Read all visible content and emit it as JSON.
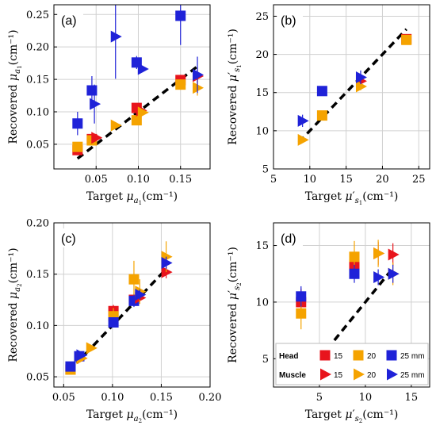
{
  "colors": {
    "grid": "#d0d0d0",
    "frame": "#000000",
    "fit_line": "#000000"
  },
  "series_styles": {
    "head_15": {
      "color": "#e8141c",
      "marker": "square"
    },
    "head_20": {
      "color": "#f5a300",
      "marker": "square"
    },
    "head_25": {
      "color": "#1f22d8",
      "marker": "square"
    },
    "muscle_15": {
      "color": "#e8141c",
      "marker": "triangle-right"
    },
    "muscle_20": {
      "color": "#f5a300",
      "marker": "triangle-right"
    },
    "muscle_25": {
      "color": "#1f22d8",
      "marker": "triangle-right"
    }
  },
  "legend": {
    "rows": [
      {
        "label": "Head",
        "entries": [
          {
            "series": "head_15",
            "text": "15"
          },
          {
            "series": "head_20",
            "text": "20"
          },
          {
            "series": "head_25",
            "text": "25 mm"
          }
        ]
      },
      {
        "label": "Muscle",
        "entries": [
          {
            "series": "muscle_15",
            "text": "15"
          },
          {
            "series": "muscle_20",
            "text": "20"
          },
          {
            "series": "muscle_25",
            "text": "25 mm"
          }
        ]
      }
    ]
  },
  "chart_data": [
    {
      "panel": "(a)",
      "type": "scatter",
      "xlabel": {
        "prefix": "Target ",
        "symbol": "μ",
        "prime": "",
        "subscript": "a",
        "subsub": "1",
        "unit": "(cm⁻¹)"
      },
      "ylabel": {
        "prefix": "Recovered ",
        "symbol": "μ",
        "prime": "",
        "subscript": "a",
        "subsub": "1",
        "unit": "(cm⁻¹)"
      },
      "xlim": [
        0.0,
        0.185
      ],
      "ylim": [
        0.012,
        0.265
      ],
      "xticks": [
        0.05,
        0.1,
        0.15
      ],
      "xticklabels": [
        "0.05",
        "0.10",
        "0.15"
      ],
      "yticks": [
        0.05,
        0.1,
        0.15,
        0.2,
        0.25
      ],
      "yticklabels": [
        "0.05",
        "0.10",
        "0.15",
        "0.20",
        "0.25"
      ],
      "fit_line": [
        [
          0.028,
          0.028
        ],
        [
          0.17,
          0.17
        ]
      ],
      "series": [
        {
          "style": "head_15",
          "points": [
            {
              "x": 0.028,
              "y": 0.041,
              "err": 0.004
            },
            {
              "x": 0.045,
              "y": 0.058,
              "err": 0.005
            },
            {
              "x": 0.098,
              "y": 0.106,
              "err": 0.006
            },
            {
              "x": 0.15,
              "y": 0.149,
              "err": 0.008
            }
          ]
        },
        {
          "style": "head_20",
          "points": [
            {
              "x": 0.028,
              "y": 0.046,
              "err": 0.005
            },
            {
              "x": 0.045,
              "y": 0.056,
              "err": 0.006
            },
            {
              "x": 0.098,
              "y": 0.087,
              "err": 0.007
            },
            {
              "x": 0.15,
              "y": 0.142,
              "err": 0.008
            }
          ]
        },
        {
          "style": "head_25",
          "points": [
            {
              "x": 0.028,
              "y": 0.082,
              "err": 0.018
            },
            {
              "x": 0.045,
              "y": 0.133,
              "err": 0.022
            },
            {
              "x": 0.098,
              "y": 0.176,
              "err": 0.01
            },
            {
              "x": 0.15,
              "y": 0.248,
              "err": 0.045
            }
          ]
        },
        {
          "style": "muscle_15",
          "points": [
            {
              "x": 0.05,
              "y": 0.06,
              "err": 0.004
            },
            {
              "x": 0.103,
              "y": 0.102,
              "err": 0.005
            },
            {
              "x": 0.17,
              "y": 0.155,
              "err": 0.01
            }
          ]
        },
        {
          "style": "muscle_20",
          "points": [
            {
              "x": 0.073,
              "y": 0.079,
              "err": 0.005
            },
            {
              "x": 0.105,
              "y": 0.099,
              "err": 0.005
            },
            {
              "x": 0.17,
              "y": 0.137,
              "err": 0.012
            }
          ]
        },
        {
          "style": "muscle_25",
          "points": [
            {
              "x": 0.048,
              "y": 0.112,
              "err": 0.03
            },
            {
              "x": 0.073,
              "y": 0.216,
              "err": 0.065
            },
            {
              "x": 0.105,
              "y": 0.166,
              "err": 0.005
            },
            {
              "x": 0.17,
              "y": 0.157,
              "err": 0.028
            }
          ]
        }
      ]
    },
    {
      "panel": "(b)",
      "type": "scatter",
      "xlabel": {
        "prefix": "Target ",
        "symbol": "μ",
        "prime": "′",
        "subscript": "s",
        "subsub": "1",
        "unit": "(cm⁻¹)"
      },
      "ylabel": {
        "prefix": "Recovered ",
        "symbol": "μ",
        "prime": "′",
        "subscript": "s",
        "subsub": "1",
        "unit": "(cm⁻¹)"
      },
      "xlim": [
        5,
        26.5
      ],
      "ylim": [
        5,
        26.5
      ],
      "xticks": [
        5,
        10,
        15,
        20,
        25
      ],
      "xticklabels": [
        "5",
        "10",
        "15",
        "20",
        "25"
      ],
      "yticks": [
        5,
        10,
        15,
        20,
        25
      ],
      "yticklabels": [
        "5",
        "10",
        "15",
        "20",
        "25"
      ],
      "fit_line": [
        [
          8.5,
          8.5
        ],
        [
          23.3,
          23.3
        ]
      ],
      "series": [
        {
          "style": "head_15",
          "points": [
            {
              "x": 23.3,
              "y": 22.0,
              "err": 0.6
            }
          ]
        },
        {
          "style": "head_20",
          "points": [
            {
              "x": 11.7,
              "y": 12.0,
              "err": 0.4
            },
            {
              "x": 23.3,
              "y": 21.9,
              "err": 0.6
            }
          ]
        },
        {
          "style": "head_25",
          "points": [
            {
              "x": 11.7,
              "y": 15.2,
              "err": 0.6
            }
          ]
        },
        {
          "style": "muscle_15",
          "points": [
            {
              "x": 17.0,
              "y": 16.5,
              "err": 0.6
            }
          ]
        },
        {
          "style": "muscle_20",
          "points": [
            {
              "x": 9.0,
              "y": 8.8,
              "err": 0.4
            },
            {
              "x": 17.0,
              "y": 15.8,
              "err": 0.5
            }
          ]
        },
        {
          "style": "muscle_25",
          "points": [
            {
              "x": 9.0,
              "y": 11.3,
              "err": 0.8
            },
            {
              "x": 17.0,
              "y": 17.0,
              "err": 0.9
            }
          ]
        }
      ]
    },
    {
      "panel": "(c)",
      "type": "scatter",
      "xlabel": {
        "prefix": "Target ",
        "symbol": "μ",
        "prime": "",
        "subscript": "a",
        "subsub": "2",
        "unit": "(cm⁻¹)"
      },
      "ylabel": {
        "prefix": "Recovered ",
        "symbol": "μ",
        "prime": "",
        "subscript": "a",
        "subsub": "2",
        "unit": "(cm⁻¹)"
      },
      "xlim": [
        0.04,
        0.2
      ],
      "ylim": [
        0.04,
        0.2
      ],
      "xticks": [
        0.05,
        0.1,
        0.15,
        0.2
      ],
      "xticklabels": [
        "0.05",
        "0.10",
        "0.15",
        "0.20"
      ],
      "yticks": [
        0.05,
        0.1,
        0.15,
        0.2
      ],
      "yticklabels": [
        "0.05",
        "0.10",
        "0.15",
        "0.20"
      ],
      "fit_line": [
        [
          0.055,
          0.055
        ],
        [
          0.155,
          0.155
        ]
      ],
      "series": [
        {
          "style": "head_15",
          "points": [
            {
              "x": 0.057,
              "y": 0.057,
              "err": 0.003
            },
            {
              "x": 0.101,
              "y": 0.114,
              "err": 0.006
            },
            {
              "x": 0.122,
              "y": 0.125,
              "err": 0.006
            }
          ]
        },
        {
          "style": "head_20",
          "points": [
            {
              "x": 0.057,
              "y": 0.057,
              "err": 0.003
            },
            {
              "x": 0.101,
              "y": 0.109,
              "err": 0.008
            },
            {
              "x": 0.122,
              "y": 0.145,
              "err": 0.018
            }
          ]
        },
        {
          "style": "head_25",
          "points": [
            {
              "x": 0.057,
              "y": 0.06,
              "err": 0.003
            },
            {
              "x": 0.066,
              "y": 0.07,
              "err": 0.004
            },
            {
              "x": 0.101,
              "y": 0.103,
              "err": 0.005
            },
            {
              "x": 0.122,
              "y": 0.124,
              "err": 0.006
            }
          ]
        },
        {
          "style": "muscle_15",
          "points": [
            {
              "x": 0.068,
              "y": 0.068,
              "err": 0.003
            },
            {
              "x": 0.128,
              "y": 0.127,
              "err": 0.004
            },
            {
              "x": 0.155,
              "y": 0.152,
              "err": 0.006
            }
          ]
        },
        {
          "style": "muscle_20",
          "points": [
            {
              "x": 0.068,
              "y": 0.068,
              "err": 0.003
            },
            {
              "x": 0.078,
              "y": 0.078,
              "err": 0.003
            },
            {
              "x": 0.128,
              "y": 0.133,
              "err": 0.012
            },
            {
              "x": 0.155,
              "y": 0.167,
              "err": 0.015
            }
          ]
        },
        {
          "style": "muscle_25",
          "points": [
            {
              "x": 0.068,
              "y": 0.071,
              "err": 0.003
            },
            {
              "x": 0.128,
              "y": 0.13,
              "err": 0.005
            },
            {
              "x": 0.155,
              "y": 0.161,
              "err": 0.006
            }
          ]
        }
      ]
    },
    {
      "panel": "(d)",
      "type": "scatter",
      "xlabel": {
        "prefix": "Target ",
        "symbol": "μ",
        "prime": "′",
        "subscript": "s",
        "subsub": "2",
        "unit": "(cm⁻¹)"
      },
      "ylabel": {
        "prefix": "Recovered ",
        "symbol": "μ",
        "prime": "′",
        "subscript": "s",
        "subsub": "2",
        "unit": "(cm⁻¹)"
      },
      "xlim": [
        0,
        17
      ],
      "ylim": [
        2.5,
        17
      ],
      "xticks": [
        5,
        10,
        15
      ],
      "xticklabels": [
        "5",
        "10",
        "15"
      ],
      "yticks": [
        5,
        10,
        15
      ],
      "yticklabels": [
        "5",
        "10",
        "15"
      ],
      "fit_line": [
        [
          5.0,
          5.0
        ],
        [
          13.0,
          13.0
        ]
      ],
      "series": [
        {
          "style": "head_15",
          "points": [
            {
              "x": 3.0,
              "y": 10.0,
              "err": 1.2
            },
            {
              "x": 8.8,
              "y": 13.3,
              "err": 1.0
            }
          ]
        },
        {
          "style": "head_20",
          "points": [
            {
              "x": 3.0,
              "y": 9.0,
              "err": 1.4
            },
            {
              "x": 8.8,
              "y": 14.0,
              "err": 1.4
            }
          ]
        },
        {
          "style": "head_25",
          "points": [
            {
              "x": 3.0,
              "y": 10.5,
              "err": 0.9
            },
            {
              "x": 8.8,
              "y": 12.5,
              "err": 0.8
            }
          ]
        },
        {
          "style": "muscle_15",
          "points": [
            {
              "x": 11.4,
              "y": 14.3,
              "err": 1.0
            },
            {
              "x": 13.0,
              "y": 14.2,
              "err": 1.0
            }
          ]
        },
        {
          "style": "muscle_20",
          "points": [
            {
              "x": 11.4,
              "y": 14.3,
              "err": 1.2
            },
            {
              "x": 13.0,
              "y": 12.5,
              "err": 1.0
            }
          ]
        },
        {
          "style": "muscle_25",
          "points": [
            {
              "x": 11.4,
              "y": 12.2,
              "err": 0.7
            },
            {
              "x": 13.0,
              "y": 12.5,
              "err": 0.8
            }
          ]
        }
      ],
      "legend": true
    }
  ]
}
